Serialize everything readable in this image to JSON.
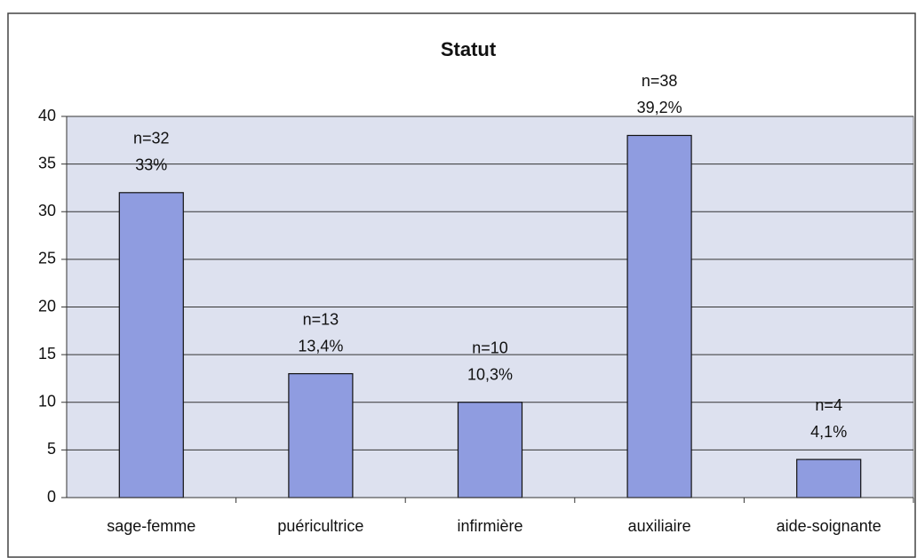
{
  "chart_data": {
    "type": "bar",
    "title": "Statut",
    "categories": [
      "sage-femme",
      "puéricultrice",
      "infirmière",
      "auxiliaire",
      "aide-soignante"
    ],
    "values": [
      32,
      13,
      10,
      38,
      4
    ],
    "value_labels": [
      "n=32",
      "n=13",
      "n=10",
      "n=38",
      "n=4"
    ],
    "annotations": [
      "33%",
      "13,4%",
      "10,3%",
      "39,2%",
      "4,1%"
    ],
    "color": "#8f9ce0",
    "ylim": [
      0,
      40
    ],
    "yticks": [
      0,
      5,
      10,
      15,
      20,
      25,
      30,
      35,
      40
    ],
    "grid": true
  }
}
